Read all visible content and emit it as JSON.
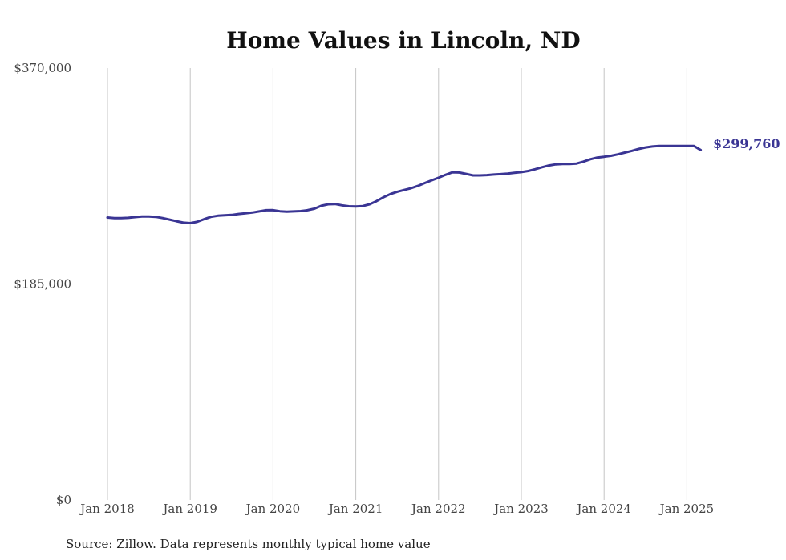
{
  "chart_data": {
    "type": "line",
    "title": "Home Values in Lincoln, ND",
    "source": "Source: Zillow. Data represents monthly typical home value",
    "y_ticks": [
      "$0",
      "$185,000",
      "$370,000"
    ],
    "y_tick_values": [
      0,
      185000,
      370000
    ],
    "ylim": [
      0,
      370000
    ],
    "x_ticks": [
      "Jan 2018",
      "Jan 2019",
      "Jan 2020",
      "Jan 2021",
      "Jan 2022",
      "Jan 2023",
      "Jan 2024",
      "Jan 2025"
    ],
    "x_tick_positions": [
      0,
      12,
      24,
      36,
      48,
      60,
      72,
      84
    ],
    "xlim": [
      0,
      86
    ],
    "grid": "vertical",
    "line_color": "#3a3594",
    "end_label": "$299,760",
    "series": [
      {
        "x": [
          0,
          1,
          2,
          3,
          4,
          5,
          6,
          7,
          8,
          9,
          10,
          11,
          12,
          13,
          14,
          15,
          16,
          17,
          18,
          19,
          20,
          21,
          22,
          23,
          24,
          25,
          26,
          27,
          28,
          29,
          30,
          31,
          32,
          33,
          34,
          35,
          36,
          37,
          38,
          39,
          40,
          41,
          42,
          43,
          44,
          45,
          46,
          47,
          48,
          49,
          50,
          51,
          52,
          53,
          54,
          55,
          56,
          57,
          58,
          59,
          60,
          61,
          62,
          63,
          64,
          65,
          66,
          67,
          68,
          69,
          70,
          71,
          72,
          73,
          74,
          75,
          76,
          77,
          78,
          79,
          80,
          81,
          82,
          83,
          84,
          85,
          86
        ],
        "values": [
          242000,
          241500,
          241500,
          241700,
          242300,
          242800,
          242900,
          242500,
          241500,
          240200,
          238800,
          237600,
          237200,
          238300,
          240500,
          242500,
          243500,
          243800,
          244200,
          245000,
          245600,
          246200,
          247200,
          248200,
          248300,
          247300,
          247000,
          247200,
          247500,
          248200,
          249500,
          252000,
          253300,
          253500,
          252400,
          251600,
          251400,
          251800,
          253300,
          256000,
          259300,
          262000,
          264000,
          265500,
          267000,
          269000,
          271500,
          273800,
          276000,
          278500,
          280700,
          280500,
          279300,
          278000,
          278000,
          278300,
          278800,
          279100,
          279600,
          280200,
          280800,
          281800,
          283300,
          285000,
          286500,
          287500,
          287800,
          287800,
          288200,
          289800,
          291900,
          293300,
          294000,
          294800,
          296100,
          297600,
          299000,
          300700,
          302000,
          302800,
          303300,
          303300,
          303200,
          303300,
          303300,
          303300,
          299760
        ]
      }
    ]
  }
}
